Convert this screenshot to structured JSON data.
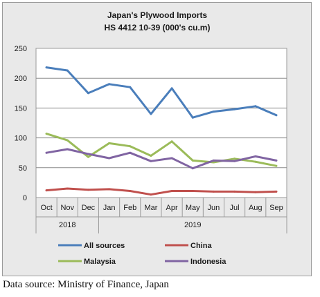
{
  "chart_data": {
    "type": "line",
    "title": "Japan's Plywood Imports",
    "subtitle": "HS 4412 10-39  (000's cu.m)",
    "categories": [
      "Oct",
      "Nov",
      "Dec",
      "Jan",
      "Feb",
      "Mar",
      "Apr",
      "May",
      "Jun",
      "Jul",
      "Aug",
      "Sep"
    ],
    "year_groups": [
      {
        "label": "2018",
        "start": 0,
        "end": 2
      },
      {
        "label": "2019",
        "start": 3,
        "end": 11
      }
    ],
    "ylim": [
      0,
      250
    ],
    "yticks": [
      0,
      50,
      100,
      150,
      200,
      250
    ],
    "grid": true,
    "legend_position": "bottom",
    "series": [
      {
        "name": "All sources",
        "color": "#4a7ebb",
        "values": [
          218,
          213,
          175,
          190,
          185,
          140,
          183,
          134,
          144,
          148,
          153,
          138
        ]
      },
      {
        "name": "China",
        "color": "#c0504d",
        "values": [
          12,
          15,
          13,
          14,
          11,
          5,
          11,
          11,
          10,
          10,
          9,
          10
        ]
      },
      {
        "name": "Malaysia",
        "color": "#9bbb59",
        "values": [
          107,
          96,
          68,
          91,
          86,
          70,
          94,
          62,
          59,
          65,
          60,
          53
        ]
      },
      {
        "name": "Indonesia",
        "color": "#8064a2",
        "values": [
          75,
          81,
          73,
          66,
          75,
          61,
          66,
          49,
          62,
          61,
          69,
          62
        ]
      }
    ]
  },
  "source_note": "Data source: Ministry of Finance, Japan"
}
